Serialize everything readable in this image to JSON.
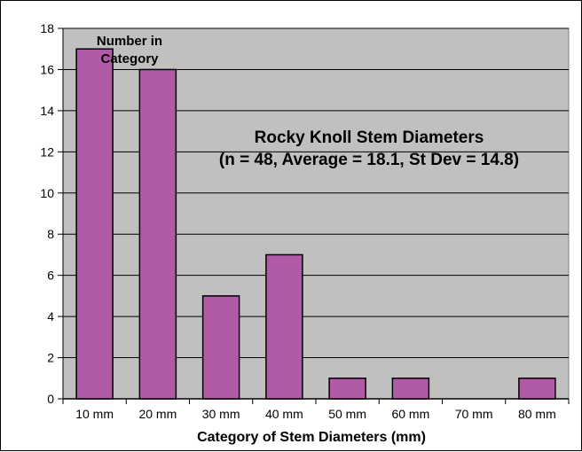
{
  "chart_data": {
    "type": "bar",
    "title": "Rocky Knoll Stem Diameters",
    "subtitle": "(n = 48, Average = 18.1, St Dev = 14.8)",
    "ylabel_lines": [
      "Number in",
      "Category"
    ],
    "xlabel": "Category of Stem Diameters (mm)",
    "categories": [
      "10 mm",
      "20 mm",
      "30 mm",
      "40 mm",
      "50 mm",
      "60 mm",
      "70 mm",
      "80 mm"
    ],
    "values": [
      17,
      16,
      5,
      7,
      1,
      1,
      0,
      1
    ],
    "ylim": [
      0,
      18
    ],
    "yticks": [
      0,
      2,
      4,
      6,
      8,
      10,
      12,
      14,
      16,
      18
    ],
    "grid": true,
    "colors": {
      "bar": "#b05aa8",
      "plot_bg": "#c0c0c0",
      "grid": "#000000"
    }
  }
}
